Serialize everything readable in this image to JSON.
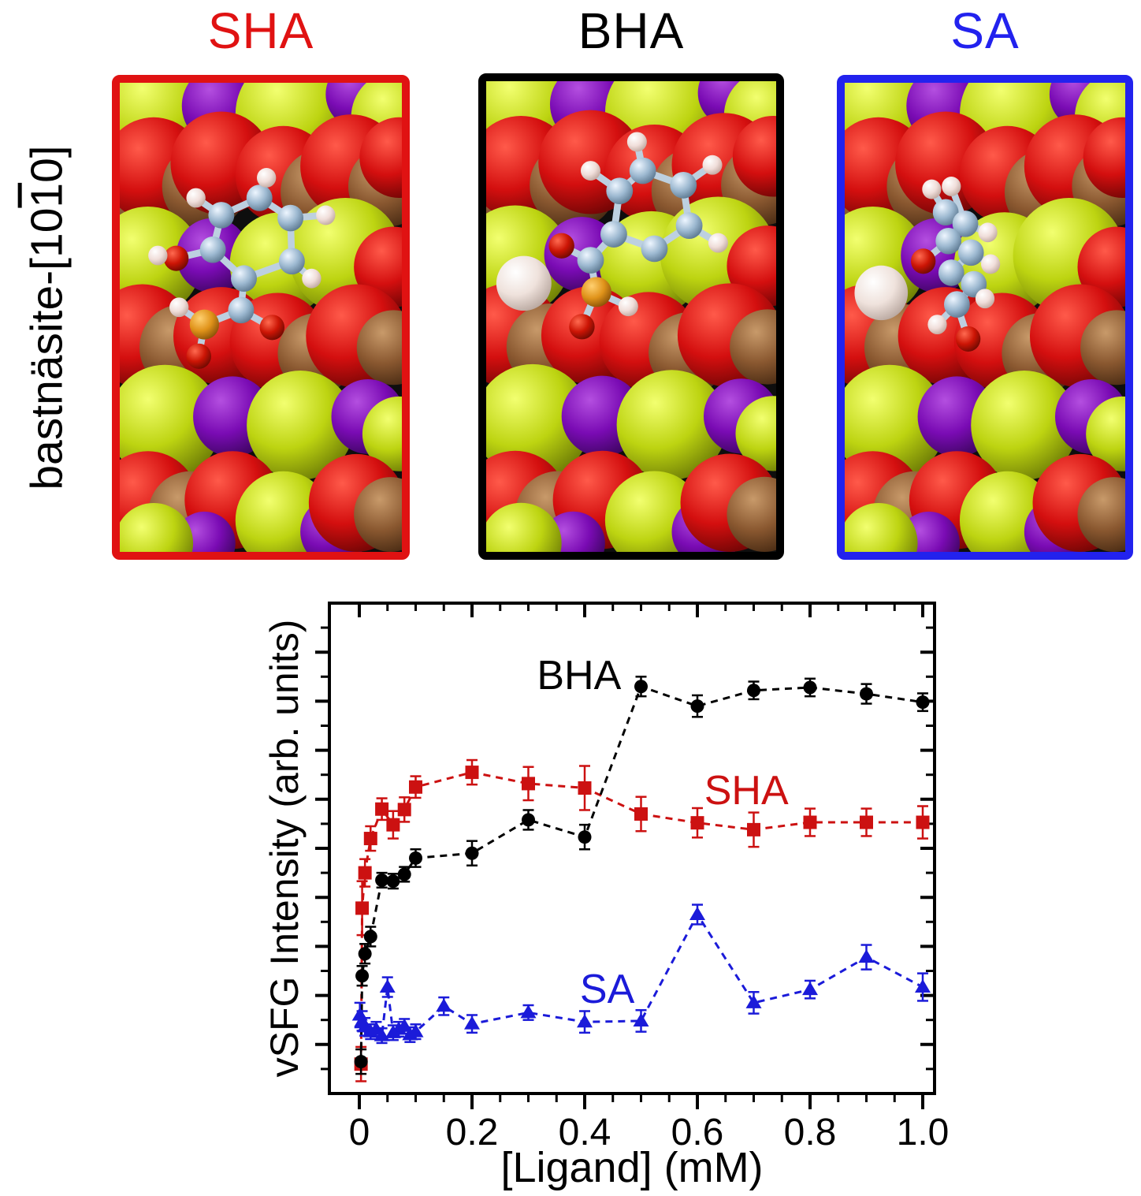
{
  "side_label": {
    "prefix": "bastnäsite-[10",
    "overlined": "1",
    "suffix": "0]"
  },
  "panels": [
    {
      "id": "sha",
      "title": "SHA",
      "accent": "#e01212"
    },
    {
      "id": "bha",
      "title": "BHA",
      "accent": "#000000"
    },
    {
      "id": "sa",
      "title": "SA",
      "accent": "#2222ee"
    }
  ],
  "molecular_art": {
    "colors": {
      "r": [
        "#ff5a4a",
        "#d40f0f",
        "#700505"
      ],
      "y": [
        "#f2ff70",
        "#bdd411",
        "#6f7e06"
      ],
      "p": [
        "#b44fe0",
        "#7a0bb4",
        "#3d0560"
      ],
      "br": [
        "#c89a6a",
        "#8a5830",
        "#4a2c14"
      ],
      "w": [
        "#ffffff",
        "#efe2dc",
        "#b9a8a0"
      ],
      "C": [
        "#eef6ff",
        "#9cb8d0",
        "#5c7890"
      ],
      "H": [
        "#ffffff",
        "#f0deda",
        "#c0a8a0"
      ],
      "O": [
        "#ff6a50",
        "#cc1505",
        "#6e0a02"
      ],
      "S": [
        "#ffd070",
        "#e0931a",
        "#8a5207"
      ]
    },
    "atom_radii": {
      "C": 4.6,
      "H": 3.4,
      "O": 4.4,
      "S": 5.2,
      "w": 9.5
    },
    "bond_color": "#bdd0e0",
    "surface": [
      [
        "y",
        14,
        10,
        20
      ],
      [
        "p",
        36,
        8,
        14
      ],
      [
        "y",
        62,
        11,
        21
      ],
      [
        "p",
        85,
        4,
        12
      ],
      [
        "y",
        98,
        12,
        16
      ],
      [
        "br",
        6,
        38,
        16
      ],
      [
        "r",
        12,
        30,
        18
      ],
      [
        "br",
        30,
        36,
        15
      ],
      [
        "r",
        36,
        28,
        18
      ],
      [
        "r",
        58,
        32,
        17
      ],
      [
        "br",
        72,
        38,
        15
      ],
      [
        "r",
        82,
        29,
        18
      ],
      [
        "br",
        95,
        36,
        14
      ],
      [
        "r",
        99,
        26,
        14
      ],
      [
        "y",
        10,
        62,
        19
      ],
      [
        "p",
        33,
        60,
        13
      ],
      [
        "y",
        57,
        63,
        18
      ],
      [
        "y",
        80,
        60,
        20
      ],
      [
        "r",
        97,
        64,
        14
      ],
      [
        "r",
        8,
        88,
        18
      ],
      [
        "br",
        22,
        92,
        15
      ],
      [
        "r",
        36,
        88,
        17
      ],
      [
        "r",
        56,
        90,
        17
      ],
      [
        "br",
        70,
        94,
        14
      ],
      [
        "r",
        84,
        88,
        18
      ],
      [
        "br",
        97,
        92,
        13
      ],
      [
        "y",
        16,
        118,
        20
      ],
      [
        "p",
        40,
        116,
        14
      ],
      [
        "y",
        64,
        119,
        19
      ],
      [
        "p",
        88,
        116,
        13
      ],
      [
        "y",
        99,
        122,
        13
      ],
      [
        "r",
        10,
        146,
        18
      ],
      [
        "br",
        25,
        150,
        15
      ],
      [
        "r",
        40,
        145,
        17
      ],
      [
        "y",
        58,
        152,
        17
      ],
      [
        "p",
        76,
        156,
        12
      ],
      [
        "r",
        84,
        146,
        17
      ],
      [
        "br",
        96,
        150,
        13
      ],
      [
        "p",
        30,
        160,
        11
      ],
      [
        "y",
        12,
        160,
        14
      ]
    ],
    "molecules": {
      "sha": {
        "atoms": [
          [
            "C",
            49.5,
            40
          ],
          [
            "C",
            36,
            46
          ],
          [
            "C",
            33,
            58
          ],
          [
            "C",
            44,
            68
          ],
          [
            "C",
            61,
            62
          ],
          [
            "C",
            60.5,
            47
          ],
          [
            "H",
            52,
            33
          ],
          [
            "H",
            27,
            40
          ],
          [
            "H",
            73,
            46
          ],
          [
            "H",
            68,
            68
          ],
          [
            "O",
            20,
            61
          ],
          [
            "H",
            13.5,
            60
          ],
          [
            "C",
            43,
            79
          ],
          [
            "S",
            30,
            84
          ],
          [
            "H",
            21,
            78
          ],
          [
            "O",
            54,
            85
          ],
          [
            "O",
            28,
            95
          ]
        ],
        "bonds": [
          [
            0,
            1
          ],
          [
            1,
            2
          ],
          [
            2,
            3
          ],
          [
            3,
            4
          ],
          [
            4,
            5
          ],
          [
            5,
            0
          ],
          [
            0,
            6
          ],
          [
            1,
            7
          ],
          [
            5,
            8
          ],
          [
            4,
            9
          ],
          [
            2,
            10
          ],
          [
            10,
            11
          ],
          [
            3,
            12
          ],
          [
            12,
            13
          ],
          [
            13,
            14
          ],
          [
            12,
            15
          ],
          [
            13,
            16
          ]
        ]
      },
      "bha": {
        "atoms": [
          [
            "w",
            13,
            70
          ],
          [
            "C",
            54,
            31
          ],
          [
            "C",
            68,
            36
          ],
          [
            "C",
            70,
            50
          ],
          [
            "C",
            58,
            58
          ],
          [
            "C",
            44,
            53
          ],
          [
            "C",
            46,
            38
          ],
          [
            "H",
            52,
            21
          ],
          [
            "H",
            78,
            29
          ],
          [
            "H",
            80,
            56
          ],
          [
            "H",
            36,
            31
          ],
          [
            "C",
            36,
            62
          ],
          [
            "O",
            26,
            57
          ],
          [
            "S",
            38,
            73
          ],
          [
            "H",
            49,
            78
          ],
          [
            "O",
            33,
            85
          ]
        ],
        "bonds": [
          [
            1,
            2
          ],
          [
            2,
            3
          ],
          [
            3,
            4
          ],
          [
            4,
            5
          ],
          [
            5,
            6
          ],
          [
            6,
            1
          ],
          [
            1,
            7
          ],
          [
            2,
            8
          ],
          [
            3,
            9
          ],
          [
            6,
            10
          ],
          [
            5,
            11
          ],
          [
            11,
            12
          ],
          [
            11,
            13
          ],
          [
            13,
            14
          ],
          [
            13,
            15
          ]
        ]
      },
      "sa": {
        "atoms": [
          [
            "w",
            13,
            73
          ],
          [
            "H",
            31,
            37
          ],
          [
            "H",
            38,
            36
          ],
          [
            "C",
            36,
            45
          ],
          [
            "C",
            43,
            49
          ],
          [
            "C",
            37,
            55
          ],
          [
            "C",
            45,
            59
          ],
          [
            "C",
            38,
            66
          ],
          [
            "C",
            46,
            70
          ],
          [
            "C",
            40,
            77
          ],
          [
            "H",
            51,
            52
          ],
          [
            "O",
            28,
            62
          ],
          [
            "H",
            52,
            63
          ],
          [
            "H",
            50,
            75
          ],
          [
            "H",
            33,
            84
          ],
          [
            "O",
            44,
            89
          ]
        ],
        "bonds": [
          [
            1,
            3
          ],
          [
            2,
            4
          ],
          [
            3,
            4
          ],
          [
            4,
            5
          ],
          [
            5,
            6
          ],
          [
            6,
            7
          ],
          [
            7,
            8
          ],
          [
            8,
            9
          ],
          [
            4,
            10
          ],
          [
            5,
            11
          ],
          [
            6,
            12
          ],
          [
            8,
            13
          ],
          [
            9,
            14
          ],
          [
            9,
            15
          ]
        ]
      }
    }
  },
  "chart_data": {
    "type": "scatter",
    "title": "",
    "xlabel": "[Ligand] (mM)",
    "ylabel": "vSFG Intensity (arb. units)",
    "xlim": [
      -0.053,
      1.021
    ],
    "ylim": [
      0,
      1
    ],
    "x_major_ticks": [
      0,
      0.2,
      0.4,
      0.6,
      0.8,
      1.0
    ],
    "x_tick_labels": [
      "0",
      "0.2",
      "0.4",
      "0.6",
      "0.8",
      "1.0"
    ],
    "x_minor_step": 0.05,
    "y_major_step": 0.1,
    "y_minor_step": 0.05,
    "y_axis_numbers": false,
    "grid": false,
    "legend": "inline-labels",
    "line_style": "dashed",
    "series": [
      {
        "name": "SHA",
        "color": "#cc1111",
        "marker": "square",
        "label_anchor": [
          0.687,
          0.59
        ],
        "points": [
          [
            0.003,
            0.06,
            0.035
          ],
          [
            0.005,
            0.378,
            0.055
          ],
          [
            0.01,
            0.45,
            0.028
          ],
          [
            0.02,
            0.52,
            0.025
          ],
          [
            0.04,
            0.58,
            0.022
          ],
          [
            0.06,
            0.548,
            0.028
          ],
          [
            0.08,
            0.579,
            0.025
          ],
          [
            0.1,
            0.625,
            0.022
          ],
          [
            0.2,
            0.655,
            0.025
          ],
          [
            0.3,
            0.632,
            0.034
          ],
          [
            0.4,
            0.623,
            0.045
          ],
          [
            0.5,
            0.57,
            0.035
          ],
          [
            0.6,
            0.552,
            0.03
          ],
          [
            0.7,
            0.538,
            0.035
          ],
          [
            0.8,
            0.553,
            0.028
          ],
          [
            0.9,
            0.553,
            0.028
          ],
          [
            1.0,
            0.553,
            0.033
          ]
        ]
      },
      {
        "name": "BHA",
        "color": "#000000",
        "marker": "circle",
        "label_anchor": [
          0.39,
          0.825
        ],
        "points": [
          [
            0.003,
            0.065,
            0.025
          ],
          [
            0.005,
            0.24,
            0.02
          ],
          [
            0.01,
            0.285,
            0.02
          ],
          [
            0.02,
            0.32,
            0.02
          ],
          [
            0.04,
            0.435,
            0.015
          ],
          [
            0.06,
            0.433,
            0.015
          ],
          [
            0.08,
            0.447,
            0.015
          ],
          [
            0.1,
            0.48,
            0.018
          ],
          [
            0.2,
            0.49,
            0.025
          ],
          [
            0.3,
            0.558,
            0.02
          ],
          [
            0.4,
            0.523,
            0.025
          ],
          [
            0.5,
            0.83,
            0.02
          ],
          [
            0.6,
            0.79,
            0.022
          ],
          [
            0.7,
            0.822,
            0.018
          ],
          [
            0.8,
            0.828,
            0.018
          ],
          [
            0.9,
            0.815,
            0.02
          ],
          [
            1.0,
            0.798,
            0.018
          ]
        ]
      },
      {
        "name": "SA",
        "color": "#1b1bd9",
        "marker": "triangle",
        "label_anchor": [
          0.44,
          0.185
        ],
        "points": [
          [
            0.001,
            0.16,
            0.025
          ],
          [
            0.005,
            0.148,
            0.02
          ],
          [
            0.01,
            0.136,
            0.018
          ],
          [
            0.02,
            0.126,
            0.015
          ],
          [
            0.03,
            0.131,
            0.015
          ],
          [
            0.04,
            0.118,
            0.015
          ],
          [
            0.05,
            0.217,
            0.02
          ],
          [
            0.06,
            0.124,
            0.015
          ],
          [
            0.07,
            0.131,
            0.015
          ],
          [
            0.08,
            0.137,
            0.015
          ],
          [
            0.09,
            0.12,
            0.015
          ],
          [
            0.1,
            0.126,
            0.015
          ],
          [
            0.15,
            0.178,
            0.018
          ],
          [
            0.2,
            0.142,
            0.018
          ],
          [
            0.3,
            0.165,
            0.015
          ],
          [
            0.4,
            0.146,
            0.022
          ],
          [
            0.5,
            0.148,
            0.022
          ],
          [
            0.6,
            0.365,
            0.02
          ],
          [
            0.7,
            0.185,
            0.022
          ],
          [
            0.8,
            0.212,
            0.018
          ],
          [
            0.9,
            0.278,
            0.025
          ],
          [
            1.0,
            0.217,
            0.028
          ]
        ]
      }
    ]
  }
}
